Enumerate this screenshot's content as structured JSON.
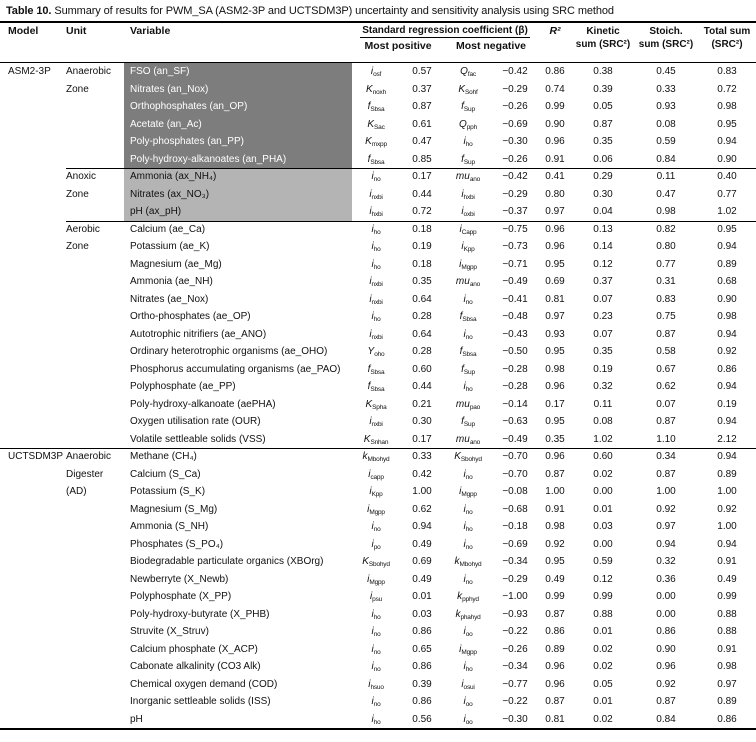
{
  "title": {
    "label": "Table 10.",
    "text": "Summary of results for PWM_SA (ASM2-3P and UCTSDM3P) uncertainty and sensitivity analysis using SRC method"
  },
  "colors": {
    "dark_shade": "#7d7d7d",
    "light_shade": "#b4b4b4",
    "rule": "#000000",
    "dark_shade_text": "#ffffff"
  },
  "header": {
    "model": "Model",
    "unit": "Unit",
    "variable": "Variable",
    "src_group": "Standard regression coefficient (β)",
    "most_positive": "Most positive",
    "most_negative": "Most negative",
    "r2": "R²",
    "kinetic1": "Kinetic",
    "kinetic2": "sum (SRC²)",
    "stoich1": "Stoich.",
    "stoich2": "sum (SRC²)",
    "total1": "Total sum",
    "total2": "(SRC²)"
  },
  "table": {
    "rows": [
      {
        "m": "ASM2-3P",
        "u": "Anaerobic",
        "v": "FSO (an_SF)",
        "pb": "i",
        "ps": "osf",
        "pv": "0.57",
        "nb": "Q",
        "ns": "fac",
        "nv": "−0.42",
        "r2": "0.86",
        "k": "0.38",
        "s": "0.45",
        "t": "0.83",
        "shade": "dark",
        "sep": ""
      },
      {
        "m": "",
        "u": "Zone",
        "v": "Nitrates (an_Nox)",
        "pb": "K",
        "ps": "noxh",
        "pv": "0.37",
        "nb": "K",
        "ns": "Sohf",
        "nv": "−0.29",
        "r2": "0.74",
        "k": "0.39",
        "s": "0.33",
        "t": "0.72",
        "shade": "dark",
        "sep": ""
      },
      {
        "m": "",
        "u": "",
        "v": "Orthophosphates (an_OP)",
        "pb": "f",
        "ps": "Sbsa",
        "pv": "0.87",
        "nb": "f",
        "ns": "Sup",
        "nv": "−0.26",
        "r2": "0.99",
        "k": "0.05",
        "s": "0.93",
        "t": "0.98",
        "shade": "dark",
        "sep": ""
      },
      {
        "m": "",
        "u": "",
        "v": "Acetate (an_Ac)",
        "pb": "K",
        "ps": "Sac",
        "pv": "0.61",
        "nb": "Q",
        "ns": "pph",
        "nv": "−0.69",
        "r2": "0.90",
        "k": "0.87",
        "s": "0.08",
        "t": "0.95",
        "shade": "dark",
        "sep": ""
      },
      {
        "m": "",
        "u": "",
        "v": "Poly-phosphates (an_PP)",
        "pb": "K",
        "ps": "mxpp",
        "pv": "0.47",
        "nb": "i",
        "ns": "ho",
        "nv": "−0.30",
        "r2": "0.96",
        "k": "0.35",
        "s": "0.59",
        "t": "0.94",
        "shade": "dark",
        "sep": ""
      },
      {
        "m": "",
        "u": "",
        "v": "Poly-hydroxy-alkanoates (an_PHA)",
        "pb": "f",
        "ps": "Sbsa",
        "pv": "0.85",
        "nb": "f",
        "ns": "Sup",
        "nv": "−0.26",
        "r2": "0.91",
        "k": "0.06",
        "s": "0.84",
        "t": "0.90",
        "shade": "dark",
        "sep": ""
      },
      {
        "m": "",
        "u": "Anoxic",
        "v": "Ammonia (ax_NH₄)",
        "pb": "i",
        "ps": "no",
        "pv": "0.17",
        "nb": "mu",
        "ns": "ano",
        "nv": "−0.42",
        "r2": "0.41",
        "k": "0.29",
        "s": "0.11",
        "t": "0.40",
        "shade": "light",
        "sep": "zone"
      },
      {
        "m": "",
        "u": "Zone",
        "v": "Nitrates (ax_NO₃)",
        "pb": "i",
        "ps": "nxbi",
        "pv": "0.44",
        "nb": "i",
        "ns": "hxbi",
        "nv": "−0.29",
        "r2": "0.80",
        "k": "0.30",
        "s": "0.47",
        "t": "0.77",
        "shade": "light",
        "sep": ""
      },
      {
        "m": "",
        "u": "",
        "v": "pH (ax_pH)",
        "pb": "i",
        "ps": "hxbi",
        "pv": "0.72",
        "nb": "i",
        "ns": "oxbi",
        "nv": "−0.37",
        "r2": "0.97",
        "k": "0.04",
        "s": "0.98",
        "t": "1.02",
        "shade": "light",
        "sep": ""
      },
      {
        "m": "",
        "u": "Aerobic",
        "v": "Calcium (ae_Ca)",
        "pb": "i",
        "ps": "ho",
        "pv": "0.18",
        "nb": "i",
        "ns": "Capp",
        "nv": "−0.75",
        "r2": "0.96",
        "k": "0.13",
        "s": "0.82",
        "t": "0.95",
        "shade": "",
        "sep": "zone"
      },
      {
        "m": "",
        "u": "Zone",
        "v": "Potassium (ae_K)",
        "pb": "i",
        "ps": "ho",
        "pv": "0.19",
        "nb": "i",
        "ns": "Kpp",
        "nv": "−0.73",
        "r2": "0.96",
        "k": "0.14",
        "s": "0.80",
        "t": "0.94",
        "shade": "",
        "sep": ""
      },
      {
        "m": "",
        "u": "",
        "v": "Magnesium (ae_Mg)",
        "pb": "i",
        "ps": "ho",
        "pv": "0.18",
        "nb": "i",
        "ns": "Mgpp",
        "nv": "−0.71",
        "r2": "0.95",
        "k": "0.12",
        "s": "0.77",
        "t": "0.89",
        "shade": "",
        "sep": ""
      },
      {
        "m": "",
        "u": "",
        "v": "Ammonia (ae_NH)",
        "pb": "i",
        "ps": "nxbi",
        "pv": "0.35",
        "nb": "mu",
        "ns": "ano",
        "nv": "−0.49",
        "r2": "0.69",
        "k": "0.37",
        "s": "0.31",
        "t": "0.68",
        "shade": "",
        "sep": ""
      },
      {
        "m": "",
        "u": "",
        "v": "Nitrates (ae_Nox)",
        "pb": "i",
        "ps": "nxbi",
        "pv": "0.64",
        "nb": "i",
        "ns": "no",
        "nv": "−0.41",
        "r2": "0.81",
        "k": "0.07",
        "s": "0.83",
        "t": "0.90",
        "shade": "",
        "sep": ""
      },
      {
        "m": "",
        "u": "",
        "v": "Ortho-phosphates (ae_OP)",
        "pb": "i",
        "ps": "ho",
        "pv": "0.28",
        "nb": "f",
        "ns": "Sbsa",
        "nv": "−0.48",
        "r2": "0.97",
        "k": "0.23",
        "s": "0.75",
        "t": "0.98",
        "shade": "",
        "sep": ""
      },
      {
        "m": "",
        "u": "",
        "v": "Autotrophic nitrifiers (ae_ANO)",
        "pb": "i",
        "ps": "nxbi",
        "pv": "0.64",
        "nb": "i",
        "ns": "no",
        "nv": "−0.43",
        "r2": "0.93",
        "k": "0.07",
        "s": "0.87",
        "t": "0.94",
        "shade": "",
        "sep": ""
      },
      {
        "m": "",
        "u": "",
        "v": "Ordinary heterotrophic organisms (ae_OHO)",
        "pb": "Y",
        "ps": "oho",
        "pv": "0.28",
        "nb": "f",
        "ns": "Sbsa",
        "nv": "−0.50",
        "r2": "0.95",
        "k": "0.35",
        "s": "0.58",
        "t": "0.92",
        "shade": "",
        "sep": ""
      },
      {
        "m": "",
        "u": "",
        "v": "Phosphorus accumulating organisms (ae_PAO)",
        "pb": "f",
        "ps": "Sbsa",
        "pv": "0.60",
        "nb": "f",
        "ns": "Sup",
        "nv": "−0.28",
        "r2": "0.98",
        "k": "0.19",
        "s": "0.67",
        "t": "0.86",
        "shade": "",
        "sep": ""
      },
      {
        "m": "",
        "u": "",
        "v": "Polyphosphate (ae_PP)",
        "pb": "f",
        "ps": "Sbsa",
        "pv": "0.44",
        "nb": "i",
        "ns": "ho",
        "nv": "−0.28",
        "r2": "0.96",
        "k": "0.32",
        "s": "0.62",
        "t": "0.94",
        "shade": "",
        "sep": ""
      },
      {
        "m": "",
        "u": "",
        "v": "Poly-hydroxy-alkanoate (aePHA)",
        "pb": "K",
        "ps": "Spha",
        "pv": "0.21",
        "nb": "mu",
        "ns": "pao",
        "nv": "−0.14",
        "r2": "0.17",
        "k": "0.11",
        "s": "0.07",
        "t": "0.19",
        "shade": "",
        "sep": ""
      },
      {
        "m": "",
        "u": "",
        "v": "Oxygen utilisation rate (OUR)",
        "pb": "i",
        "ps": "nxbi",
        "pv": "0.30",
        "nb": "f",
        "ns": "Sup",
        "nv": "−0.63",
        "r2": "0.95",
        "k": "0.08",
        "s": "0.87",
        "t": "0.94",
        "shade": "",
        "sep": ""
      },
      {
        "m": "",
        "u": "",
        "v": "Volatile settleable solids (VSS)",
        "pb": "K",
        "ps": "Snhan",
        "pv": "0.17",
        "nb": "mu",
        "ns": "ano",
        "nv": "−0.49",
        "r2": "0.35",
        "k": "1.02",
        "s": "1.10",
        "t": "2.12",
        "shade": "",
        "sep": ""
      },
      {
        "m": "UCTSDM3P",
        "u": "Anaerobic",
        "v": "Methane (CH₄)",
        "pb": "k",
        "ps": "Mbohyd",
        "pv": "0.33",
        "nb": "K",
        "ns": "Sbohyd",
        "nv": "−0.70",
        "r2": "0.96",
        "k": "0.60",
        "s": "0.34",
        "t": "0.94",
        "shade": "",
        "sep": "model"
      },
      {
        "m": "",
        "u": "Digester",
        "v": "Calcium (S_Ca)",
        "pb": "i",
        "ps": "capp",
        "pv": "0.42",
        "nb": "i",
        "ns": "no",
        "nv": "−0.70",
        "r2": "0.87",
        "k": "0.02",
        "s": "0.87",
        "t": "0.89",
        "shade": "",
        "sep": ""
      },
      {
        "m": "",
        "u": "(AD)",
        "v": "Potassium (S_K)",
        "pb": "i",
        "ps": "Kpp",
        "pv": "1.00",
        "nb": "i",
        "ns": "Mgpp",
        "nv": "−0.08",
        "r2": "1.00",
        "k": "0.00",
        "s": "1.00",
        "t": "1.00",
        "shade": "",
        "sep": ""
      },
      {
        "m": "",
        "u": "",
        "v": "Magnesium (S_Mg)",
        "pb": "i",
        "ps": "Mgpp",
        "pv": "0.62",
        "nb": "i",
        "ns": "no",
        "nv": "−0.68",
        "r2": "0.91",
        "k": "0.01",
        "s": "0.92",
        "t": "0.92",
        "shade": "",
        "sep": ""
      },
      {
        "m": "",
        "u": "",
        "v": "Ammonia (S_NH)",
        "pb": "i",
        "ps": "no",
        "pv": "0.94",
        "nb": "i",
        "ns": "ho",
        "nv": "−0.18",
        "r2": "0.98",
        "k": "0.03",
        "s": "0.97",
        "t": "1.00",
        "shade": "",
        "sep": ""
      },
      {
        "m": "",
        "u": "",
        "v": "Phosphates (S_PO₄)",
        "pb": "i",
        "ps": "po",
        "pv": "0.49",
        "nb": "i",
        "ns": "no",
        "nv": "−0.69",
        "r2": "0.92",
        "k": "0.00",
        "s": "0.94",
        "t": "0.94",
        "shade": "",
        "sep": ""
      },
      {
        "m": "",
        "u": "",
        "v": "Biodegradable particulate organics (XBOrg)",
        "pb": "K",
        "ps": "Sbohyd",
        "pv": "0.69",
        "nb": "k",
        "ns": "Mbohyd",
        "nv": "−0.34",
        "r2": "0.95",
        "k": "0.59",
        "s": "0.32",
        "t": "0.91",
        "shade": "",
        "sep": ""
      },
      {
        "m": "",
        "u": "",
        "v": "Newberryte (X_Newb)",
        "pb": "i",
        "ps": "Mgpp",
        "pv": "0.49",
        "nb": "i",
        "ns": "no",
        "nv": "−0.29",
        "r2": "0.49",
        "k": "0.12",
        "s": "0.36",
        "t": "0.49",
        "shade": "",
        "sep": ""
      },
      {
        "m": "",
        "u": "",
        "v": "Polyphosphate (X_PP)",
        "pb": "i",
        "ps": "psu",
        "pv": "0.01",
        "nb": "k",
        "ns": "pphyd",
        "nv": "−1.00",
        "r2": "0.99",
        "k": "0.99",
        "s": "0.00",
        "t": "0.99",
        "shade": "",
        "sep": ""
      },
      {
        "m": "",
        "u": "",
        "v": "Poly-hydroxy-butyrate (X_PHB)",
        "pb": "i",
        "ps": "ho",
        "pv": "0.03",
        "nb": "k",
        "ns": "phahyd",
        "nv": "−0.93",
        "r2": "0.87",
        "k": "0.88",
        "s": "0.00",
        "t": "0.88",
        "shade": "",
        "sep": ""
      },
      {
        "m": "",
        "u": "",
        "v": "Struvite (X_Struv)",
        "pb": "i",
        "ps": "no",
        "pv": "0.86",
        "nb": "i",
        "ns": "oo",
        "nv": "−0.22",
        "r2": "0.86",
        "k": "0.01",
        "s": "0.86",
        "t": "0.88",
        "shade": "",
        "sep": ""
      },
      {
        "m": "",
        "u": "",
        "v": "Calcium phosphate (X_ACP)",
        "pb": "i",
        "ps": "no",
        "pv": "0.65",
        "nb": "i",
        "ns": "Mgpp",
        "nv": "−0.26",
        "r2": "0.89",
        "k": "0.02",
        "s": "0.90",
        "t": "0.91",
        "shade": "",
        "sep": ""
      },
      {
        "m": "",
        "u": "",
        "v": "Cabonate alkalinity (CO3 Alk)",
        "pb": "i",
        "ps": "no",
        "pv": "0.86",
        "nb": "i",
        "ns": "ho",
        "nv": "−0.34",
        "r2": "0.96",
        "k": "0.02",
        "s": "0.96",
        "t": "0.98",
        "shade": "",
        "sep": ""
      },
      {
        "m": "",
        "u": "",
        "v": "Chemical oxygen demand (COD)",
        "pb": "i",
        "ps": "hsuo",
        "pv": "0.39",
        "nb": "i",
        "ns": "osui",
        "nv": "−0.77",
        "r2": "0.96",
        "k": "0.05",
        "s": "0.92",
        "t": "0.97",
        "shade": "",
        "sep": ""
      },
      {
        "m": "",
        "u": "",
        "v": "Inorganic settleable solids (ISS)",
        "pb": "i",
        "ps": "no",
        "pv": "0.86",
        "nb": "i",
        "ns": "oo",
        "nv": "−0.22",
        "r2": "0.87",
        "k": "0.01",
        "s": "0.87",
        "t": "0.89",
        "shade": "",
        "sep": ""
      },
      {
        "m": "",
        "u": "",
        "v": "pH",
        "pb": "i",
        "ps": "ho",
        "pv": "0.56",
        "nb": "i",
        "ns": "oo",
        "nv": "−0.30",
        "r2": "0.81",
        "k": "0.02",
        "s": "0.84",
        "t": "0.86",
        "shade": "",
        "sep": ""
      }
    ]
  }
}
